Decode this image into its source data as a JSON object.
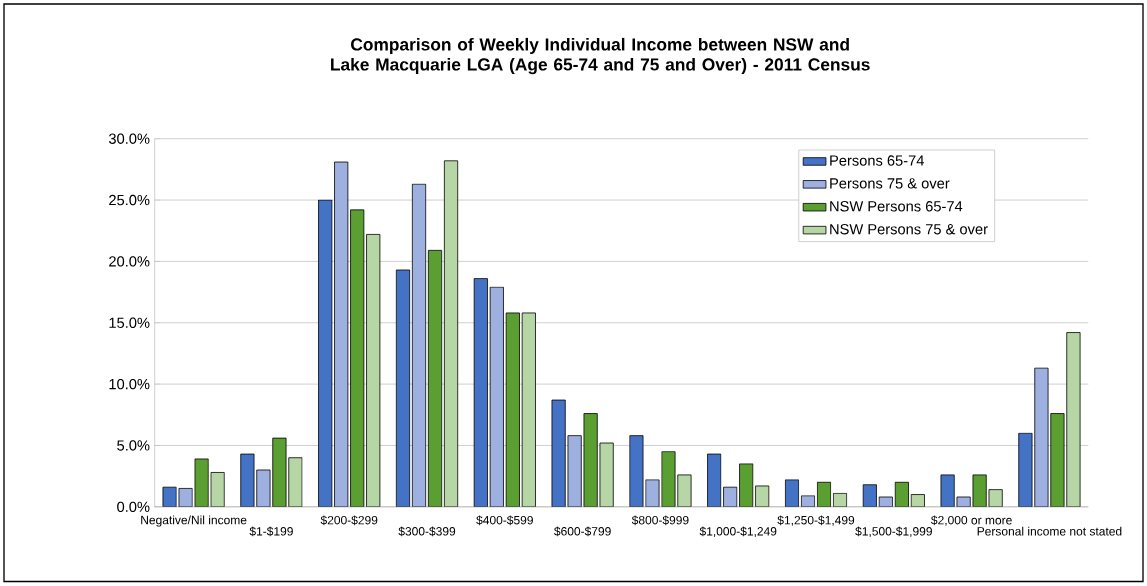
{
  "chart_data": {
    "type": "bar",
    "title": "Comparison of Weekly Individual Income between NSW and Lake Macquarie LGA (Age 65-74 and 75 and Over) - 2011 Census",
    "categories": [
      "Negative/Nil income",
      "$1-$199",
      "$200-$299",
      "$300-$399",
      "$400-$599",
      "$600-$799",
      "$800-$999",
      "$1,000-$1,249",
      "$1,250-$1,499",
      "$1,500-$1,999",
      "$2,000 or more",
      "Personal income not stated"
    ],
    "series": [
      {
        "name": "Persons 65-74",
        "color": "#4472c4",
        "values": [
          1.6,
          4.3,
          25.0,
          19.3,
          18.6,
          8.7,
          5.8,
          4.3,
          2.2,
          1.8,
          2.6,
          6.0
        ]
      },
      {
        "name": "Persons 75 & over",
        "color": "#9db0e0",
        "values": [
          1.5,
          3.0,
          28.1,
          26.3,
          17.9,
          5.8,
          2.2,
          1.6,
          0.9,
          0.8,
          0.8,
          11.3
        ]
      },
      {
        "name": "NSW Persons 65-74",
        "color": "#5b9e32",
        "values": [
          3.9,
          5.6,
          24.2,
          20.9,
          15.8,
          7.6,
          4.5,
          3.5,
          2.0,
          2.0,
          2.6,
          7.6
        ]
      },
      {
        "name": "NSW Persons 75 & over",
        "color": "#b7d6a5",
        "values": [
          2.8,
          4.0,
          22.2,
          28.2,
          15.8,
          5.2,
          2.6,
          1.7,
          1.1,
          1.0,
          1.4,
          14.2
        ]
      }
    ],
    "ylim": [
      0,
      30
    ],
    "yticks": [
      {
        "value": 0,
        "label": "0.0%"
      },
      {
        "value": 5,
        "label": "5.0%"
      },
      {
        "value": 10,
        "label": "10.0%"
      },
      {
        "value": 15,
        "label": "15.0%"
      },
      {
        "value": 20,
        "label": "20.0%"
      },
      {
        "value": 25,
        "label": "25.0%"
      },
      {
        "value": 30,
        "label": "30.0%"
      }
    ],
    "grid": "y",
    "legend": "top right"
  }
}
